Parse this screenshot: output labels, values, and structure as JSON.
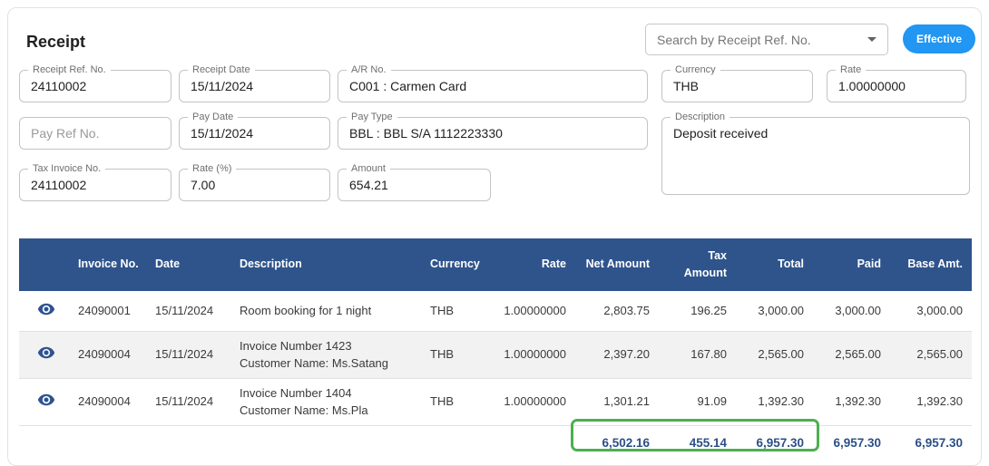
{
  "page": {
    "title": "Receipt"
  },
  "header": {
    "search": {
      "placeholder": "Search by Receipt Ref. No."
    },
    "effective_button": "Effective"
  },
  "form": {
    "receipt_ref_no": {
      "label": "Receipt Ref. No.",
      "value": "24110002"
    },
    "receipt_date": {
      "label": "Receipt Date",
      "value": "15/11/2024"
    },
    "ar_no": {
      "label": "A/R No.",
      "value": "C001 : Carmen Card"
    },
    "currency": {
      "label": "Currency",
      "value": "THB"
    },
    "rate": {
      "label": "Rate",
      "value": "1.00000000"
    },
    "pay_ref_no": {
      "placeholder": "Pay Ref No.",
      "value": ""
    },
    "pay_date": {
      "label": "Pay Date",
      "value": "15/11/2024"
    },
    "pay_type": {
      "label": "Pay Type",
      "value": "BBL : BBL S/A 1112223330"
    },
    "description": {
      "label": "Description",
      "value": "Deposit received"
    },
    "tax_invoice_no": {
      "label": "Tax Invoice No.",
      "value": "24110002"
    },
    "rate_percent": {
      "label": "Rate (%)",
      "value": "7.00"
    },
    "amount": {
      "label": "Amount",
      "value": "654.21"
    }
  },
  "table": {
    "columns": [
      "",
      "Invoice No.",
      "Date",
      "Description",
      "Currency",
      "Rate",
      "Net Amount",
      "Tax Amount",
      "Total",
      "Paid",
      "Base Amt."
    ],
    "rows": [
      {
        "invoice_no": "24090001",
        "date": "15/11/2024",
        "description": [
          "Room booking for 1 night"
        ],
        "currency": "THB",
        "rate": "1.00000000",
        "net_amount": "2,803.75",
        "tax_amount": "196.25",
        "total": "3,000.00",
        "paid": "3,000.00",
        "base_amt": "3,000.00"
      },
      {
        "invoice_no": "24090004",
        "date": "15/11/2024",
        "description": [
          "Invoice Number 1423",
          "Customer Name: Ms.Satang"
        ],
        "currency": "THB",
        "rate": "1.00000000",
        "net_amount": "2,397.20",
        "tax_amount": "167.80",
        "total": "2,565.00",
        "paid": "2,565.00",
        "base_amt": "2,565.00"
      },
      {
        "invoice_no": "24090004",
        "date": "15/11/2024",
        "description": [
          "Invoice Number 1404",
          "Customer Name: Ms.Pla"
        ],
        "currency": "THB",
        "rate": "1.00000000",
        "net_amount": "1,301.21",
        "tax_amount": "91.09",
        "total": "1,392.30",
        "paid": "1,392.30",
        "base_amt": "1,392.30"
      }
    ],
    "totals": {
      "net_amount": "6,502.16",
      "tax_amount": "455.14",
      "total": "6,957.30",
      "paid": "6,957.30",
      "base_amt": "6,957.30"
    }
  },
  "icons": {
    "row_action": "eye-icon",
    "search_dropdown": "chevron-down-icon"
  },
  "colors": {
    "accent_blue": "#2196f3",
    "header_navy": "#2f548c",
    "highlight_green": "#4caf50"
  }
}
